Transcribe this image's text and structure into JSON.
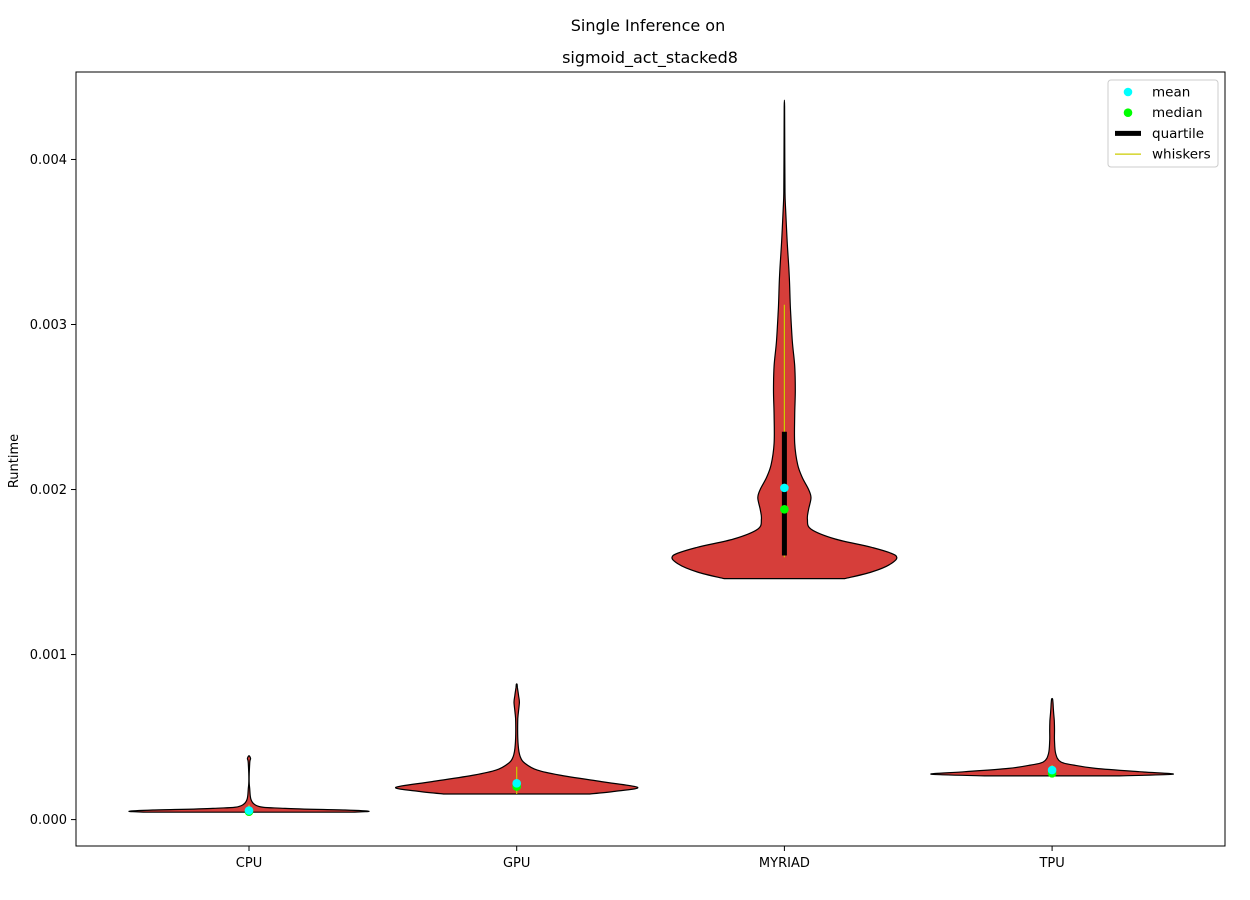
{
  "chart_data": {
    "type": "violin",
    "suptitle": "Single Inference on",
    "title": "sigmoid_act_stacked8",
    "xlabel": "",
    "ylabel": "Runtime",
    "categories": [
      "CPU",
      "GPU",
      "MYRIAD",
      "TPU"
    ],
    "ylim": [
      -0.00016,
      0.00453
    ],
    "yticks": [
      0.0,
      0.001,
      0.002,
      0.003,
      0.004
    ],
    "ytick_labels": [
      "0.000",
      "0.001",
      "0.002",
      "0.003",
      "0.004"
    ],
    "grid": false,
    "legend": {
      "placement": "top-right",
      "entries": [
        {
          "label": "mean",
          "color": "#00ffff",
          "kind": "dot"
        },
        {
          "label": "median",
          "color": "#00ff00",
          "kind": "dot"
        },
        {
          "label": "quartile",
          "color": "#000000",
          "kind": "thick-line"
        },
        {
          "label": "whiskers",
          "color": "#cccc00",
          "kind": "thin-line"
        }
      ]
    },
    "colors": {
      "violin_fill": "#d63e3a",
      "violin_edge": "#000000",
      "mean": "#00ffff",
      "median": "#00ff00",
      "quartile": "#000000",
      "whiskers": "#cccc00"
    },
    "series": [
      {
        "category": "CPU",
        "mean": 5.5e-05,
        "median": 4.8e-05,
        "q1": 4.5e-05,
        "q3": 6.5e-05,
        "whisker_low": 4.5e-05,
        "whisker_high": 9e-05,
        "profile": [
          [
            4.5e-05,
            0.85
          ],
          [
            5e-05,
            1.0
          ],
          [
            5.8e-05,
            0.8
          ],
          [
            6.8e-05,
            0.3
          ],
          [
            9e-05,
            0.05
          ],
          [
            0.0002,
            0.004
          ],
          [
            0.00034,
            0.006
          ],
          [
            0.00037,
            0.013
          ],
          [
            0.000385,
            0.004
          ]
        ]
      },
      {
        "category": "GPU",
        "mean": 0.00022,
        "median": 0.0002,
        "q1": 0.000185,
        "q3": 0.00024,
        "whisker_low": 0.000155,
        "whisker_high": 0.00032,
        "profile": [
          [
            0.000155,
            0.6
          ],
          [
            0.00017,
            0.8
          ],
          [
            0.000195,
            1.0
          ],
          [
            0.00023,
            0.7
          ],
          [
            0.00027,
            0.35
          ],
          [
            0.0003,
            0.17
          ],
          [
            0.00034,
            0.07
          ],
          [
            0.00038,
            0.03
          ],
          [
            0.00045,
            0.012
          ],
          [
            0.00059,
            0.008
          ],
          [
            0.00065,
            0.014
          ],
          [
            0.00071,
            0.022
          ],
          [
            0.00075,
            0.016
          ],
          [
            0.0008,
            0.006
          ],
          [
            0.00082,
            0.003
          ]
        ]
      },
      {
        "category": "MYRIAD",
        "mean": 0.00201,
        "median": 0.00188,
        "q1": 0.0016,
        "q3": 0.00235,
        "whisker_low": 0.00159,
        "whisker_high": 0.00312,
        "profile": [
          [
            0.00146,
            0.5
          ],
          [
            0.0015,
            0.72
          ],
          [
            0.00155,
            0.88
          ],
          [
            0.0016,
            0.92
          ],
          [
            0.00165,
            0.72
          ],
          [
            0.0017,
            0.42
          ],
          [
            0.00176,
            0.22
          ],
          [
            0.00182,
            0.19
          ],
          [
            0.00188,
            0.2
          ],
          [
            0.00195,
            0.22
          ],
          [
            0.002,
            0.2
          ],
          [
            0.00207,
            0.15
          ],
          [
            0.00215,
            0.11
          ],
          [
            0.00228,
            0.085
          ],
          [
            0.00245,
            0.085
          ],
          [
            0.0026,
            0.09
          ],
          [
            0.00275,
            0.085
          ],
          [
            0.0029,
            0.065
          ],
          [
            0.0031,
            0.05
          ],
          [
            0.0033,
            0.04
          ],
          [
            0.0035,
            0.023
          ],
          [
            0.0037,
            0.01
          ],
          [
            0.0038,
            0.005
          ],
          [
            0.004,
            0.003
          ],
          [
            0.00432,
            0.002
          ]
        ]
      },
      {
        "category": "TPU",
        "mean": 0.0003,
        "median": 0.00028,
        "q1": 0.000275,
        "q3": 0.0003,
        "whisker_low": 0.000265,
        "whisker_high": 0.00033,
        "profile": [
          [
            0.000265,
            0.55
          ],
          [
            0.000275,
            1.0
          ],
          [
            0.00029,
            0.72
          ],
          [
            0.00031,
            0.36
          ],
          [
            0.00033,
            0.18
          ],
          [
            0.00035,
            0.07
          ],
          [
            0.0004,
            0.03
          ],
          [
            0.00048,
            0.02
          ],
          [
            0.00055,
            0.02
          ],
          [
            0.0006,
            0.018
          ],
          [
            0.00065,
            0.012
          ],
          [
            0.0007,
            0.008
          ],
          [
            0.00073,
            0.004
          ]
        ]
      }
    ]
  }
}
